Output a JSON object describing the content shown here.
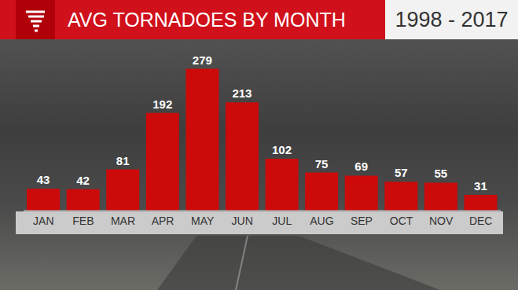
{
  "chart_data": {
    "type": "bar",
    "title": "AVG TORNADOES BY MONTH",
    "subtitle": "1998 - 2017",
    "categories": [
      "JAN",
      "FEB",
      "MAR",
      "APR",
      "MAY",
      "JUN",
      "JUL",
      "AUG",
      "SEP",
      "OCT",
      "NOV",
      "DEC"
    ],
    "values": [
      43,
      42,
      81,
      192,
      279,
      213,
      102,
      75,
      69,
      57,
      55,
      31
    ],
    "color": "#cc0a0a",
    "ylim": [
      0,
      300
    ],
    "grid": false,
    "data_labels": true,
    "tick_labels": "x"
  }
}
